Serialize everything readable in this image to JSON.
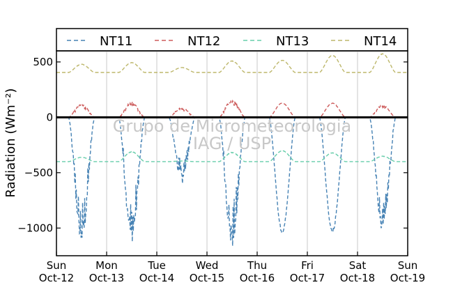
{
  "chart_data": {
    "type": "line",
    "ylabel": "Radiation (Wm⁻²)",
    "ylim": [
      -1250,
      600
    ],
    "yticks": [
      500,
      0,
      -500,
      -1000
    ],
    "ytick_labels": [
      "500",
      "0",
      "−500",
      "−1000"
    ],
    "xlim": [
      0,
      7
    ],
    "xticks": [
      {
        "pos": 0,
        "day": "Sun",
        "date": "Oct-12"
      },
      {
        "pos": 1,
        "day": "Mon",
        "date": "Oct-13"
      },
      {
        "pos": 2,
        "day": "Tue",
        "date": "Oct-14"
      },
      {
        "pos": 3,
        "day": "Wed",
        "date": "Oct-15"
      },
      {
        "pos": 4,
        "day": "Thu",
        "date": "Oct-16"
      },
      {
        "pos": 5,
        "day": "Fri",
        "date": "Oct-17"
      },
      {
        "pos": 6,
        "day": "Sat",
        "date": "Oct-18"
      },
      {
        "pos": 7,
        "day": "Sun",
        "date": "Oct-19"
      }
    ],
    "grid": "vertical",
    "zero_line": true,
    "legend_position": "top",
    "watermark": [
      "Grupo de Micrometeorologia",
      "IAG / USP"
    ],
    "series": [
      {
        "name": "NT11",
        "color": "#4682b4",
        "baseline": 0,
        "night_values": [
          0,
          0
        ],
        "peaks": [
          -1150,
          -1130,
          -600,
          -1180,
          -1050,
          -1040,
          -1030
        ],
        "noise": [
          0.35,
          0.35,
          0.45,
          0.35,
          0.03,
          0.04,
          0.25
        ]
      },
      {
        "name": "NT12",
        "color": "#cd5c5c",
        "baseline": 0,
        "peaks": [
          120,
          140,
          90,
          160,
          130,
          130,
          115
        ],
        "noise": [
          0.35,
          0.35,
          0.4,
          0.35,
          0.05,
          0.05,
          0.3
        ]
      },
      {
        "name": "NT13",
        "color": "#66cdaa",
        "baseline": -400,
        "peaks": [
          -360,
          -310,
          -395,
          -315,
          -300,
          -320,
          -350
        ],
        "noise": [
          0.1,
          0.1,
          0.05,
          0.1,
          0.05,
          0.05,
          0.08
        ]
      },
      {
        "name": "NT14",
        "color": "#bdb76b",
        "baseline": 405,
        "peaks": [
          480,
          495,
          450,
          510,
          515,
          560,
          575
        ],
        "noise": [
          0.05,
          0.05,
          0.05,
          0.05,
          0.02,
          0.02,
          0.04
        ]
      }
    ]
  }
}
